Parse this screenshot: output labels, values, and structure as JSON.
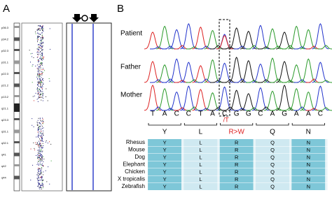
{
  "panel_a": {
    "label": "A",
    "bands": [
      "p36.3",
      "p34.2",
      "p32.3",
      "p31.1",
      "p22.3",
      "p21.2",
      "p13.2",
      "q21.1",
      "q23.3",
      "q31.1",
      "q32.1",
      "q41",
      "q42",
      "q44"
    ]
  },
  "panel_b": {
    "label": "B",
    "samples": [
      "Patient",
      "Father",
      "Mother"
    ],
    "sequence": [
      "T",
      "A",
      "C",
      "C",
      "T",
      "A",
      "C",
      "G",
      "G",
      "C",
      "A",
      "G",
      "A",
      "A",
      "C"
    ],
    "mutation_text": "/T",
    "amino_acids": [
      "Y",
      "L",
      "R>W",
      "Q",
      "N"
    ],
    "conservation": [
      {
        "species": "Rhesus",
        "residues": [
          "Y",
          "L",
          "R",
          "Q",
          "N"
        ]
      },
      {
        "species": "Mouse",
        "residues": [
          "Y",
          "L",
          "R",
          "Q",
          "N"
        ]
      },
      {
        "species": "Dog",
        "residues": [
          "Y",
          "L",
          "R",
          "Q",
          "N"
        ]
      },
      {
        "species": "Elephant",
        "residues": [
          "Y",
          "L",
          "R",
          "Q",
          "N"
        ]
      },
      {
        "species": "Chicken",
        "residues": [
          "Y",
          "L",
          "R",
          "Q",
          "N"
        ]
      },
      {
        "species": "X tropicalis",
        "residues": [
          "Y",
          "L",
          "R",
          "Q",
          "N"
        ]
      },
      {
        "species": "Zebrafish",
        "residues": [
          "Y",
          "L",
          "R",
          "Q",
          "N"
        ]
      }
    ]
  }
}
